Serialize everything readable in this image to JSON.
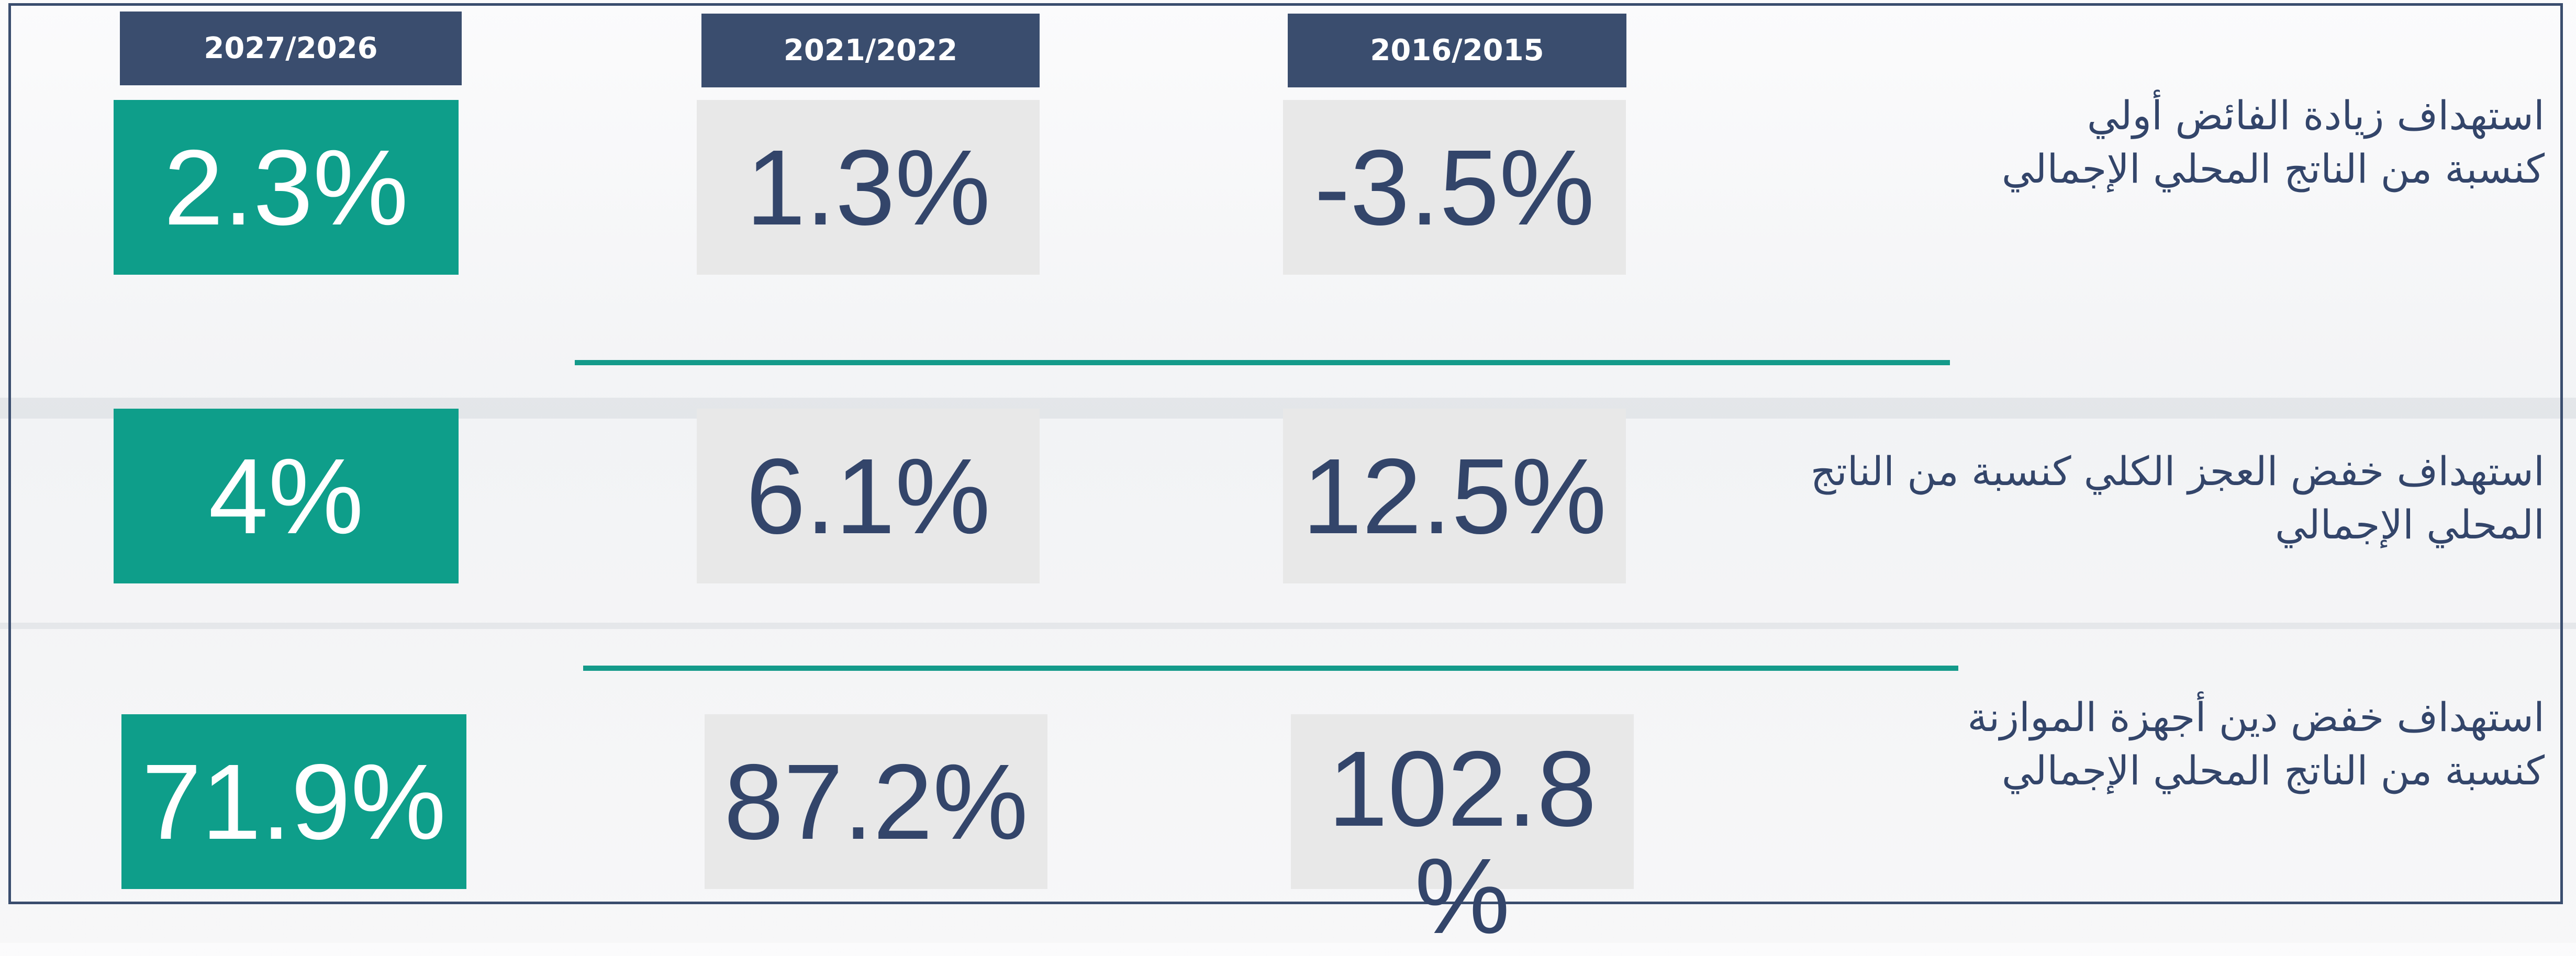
{
  "table": {
    "headers": [
      "2027/2026",
      "2021/2022",
      "2016/2015"
    ],
    "rows": [
      {
        "label": [
          "استهداف زيادة الفائض أولي",
          "كنسبة من الناتج المحلي الإجمالي"
        ],
        "values": [
          "2.3%",
          "1.3%",
          "-3.5%"
        ]
      },
      {
        "label": [
          "استهداف خفض العجز الكلي  كنسبة من الناتج",
          "المحلي الإجمالي"
        ],
        "values": [
          "4%",
          "6.1%",
          "12.5%"
        ]
      },
      {
        "label": [
          "استهداف خفض دين أجهزة الموازنة",
          "كنسبة من الناتج المحلي الإجمالي"
        ],
        "values": [
          "71.9%",
          "87.2%",
          "102.8 %"
        ]
      }
    ]
  }
}
